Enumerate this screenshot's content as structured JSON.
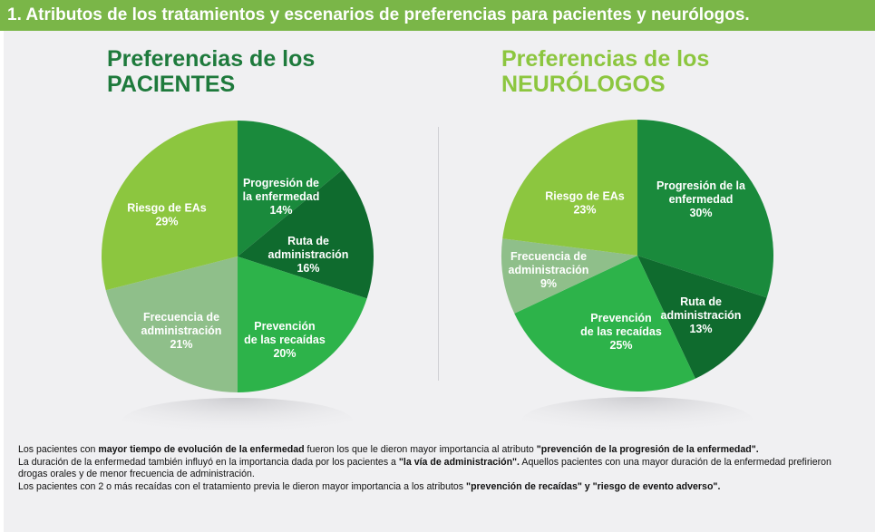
{
  "header": {
    "title": "1. Atributos de los tratamientos y escenarios de preferencias para pacientes y neurólogos."
  },
  "colors": {
    "banner": "#7ab648",
    "title_pacientes": "#1e7a3c",
    "title_neurologos": "#8cc63f"
  },
  "chart_data": [
    {
      "type": "pie",
      "title_line1": "Preferencias de los",
      "title_line2": "PACIENTES",
      "slices": [
        {
          "label": [
            "Progresión de",
            "la enfermedad"
          ],
          "value": 14,
          "value_text": "14%",
          "color": "#1a8a3c"
        },
        {
          "label": [
            "Ruta de",
            "administración"
          ],
          "value": 16,
          "value_text": "16%",
          "color": "#0f6b2e"
        },
        {
          "label": [
            "Prevención",
            "de las recaídas"
          ],
          "value": 20,
          "value_text": "20%",
          "color": "#2db34a"
        },
        {
          "label": [
            "Frecuencia de",
            "administración"
          ],
          "value": 21,
          "value_text": "21%",
          "color": "#8fbf8a"
        },
        {
          "label": [
            "Riesgo de EAs"
          ],
          "value": 29,
          "value_text": "29%",
          "color": "#8cc63f"
        }
      ]
    },
    {
      "type": "pie",
      "title_line1": "Preferencias de los",
      "title_line2": "NEURÓLOGOS",
      "slices": [
        {
          "label": [
            "Progresión de la",
            "enfermedad"
          ],
          "value": 30,
          "value_text": "30%",
          "color": "#1a8a3c"
        },
        {
          "label": [
            "Ruta de",
            "administración"
          ],
          "value": 13,
          "value_text": "13%",
          "color": "#0f6b2e"
        },
        {
          "label": [
            "Prevención",
            "de las recaídas"
          ],
          "value": 25,
          "value_text": "25%",
          "color": "#2db34a"
        },
        {
          "label": [
            "Frecuencia de",
            "administración"
          ],
          "value": 9,
          "value_text": "9%",
          "color": "#8fbf8a"
        },
        {
          "label": [
            "Riesgo de EAs"
          ],
          "value": 23,
          "value_text": "23%",
          "color": "#8cc63f"
        }
      ]
    }
  ],
  "notes": {
    "p1_a": "Los pacientes con ",
    "p1_b": "mayor tiempo de evolución de la enfermedad",
    "p1_c": " fueron los que le dieron mayor importancia al atributo ",
    "p1_d": "\"prevención de la progresión de la enfermedad\".",
    "p2_a": "La duración de la enfermedad también influyó en la importancia dada por los pacientes a ",
    "p2_b": "\"la vía de administración\".",
    "p2_c": " Aquellos pacientes con una mayor duración de la enfermedad prefirieron drogas orales y de menor frecuencia de administración.",
    "p3_a": "Los pacientes con 2 o más recaídas con el tratamiento previa le dieron mayor importancia a los atributos ",
    "p3_b": "\"prevención de recaídas\" y \"riesgo de evento adverso\"."
  }
}
